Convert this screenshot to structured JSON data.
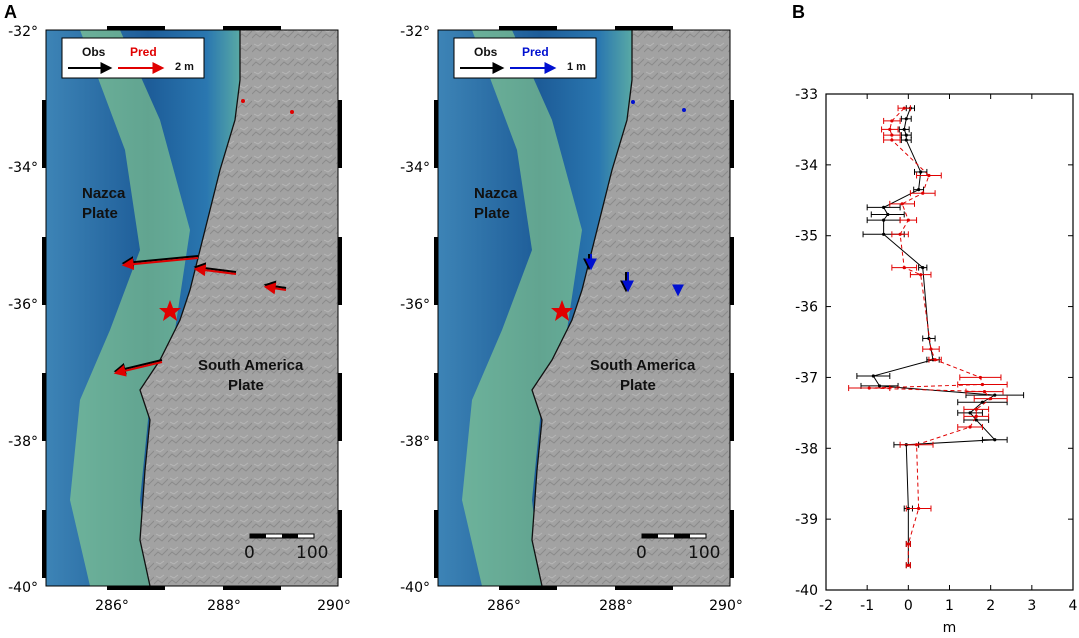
{
  "panel_a_label": "A",
  "panel_b_label": "B",
  "maps": [
    {
      "legend": {
        "obs": "Obs",
        "pred": "Pred",
        "scale": "2 m",
        "pred_color": "#e00000"
      },
      "plate1": [
        "Nazca",
        "Plate"
      ],
      "plate2": [
        "South America",
        "Plate"
      ],
      "scalebar": [
        "0",
        "100"
      ],
      "lat_ticks": [
        "-32°",
        "-34°",
        "-36°",
        "-38°",
        "-40°"
      ],
      "lon_ticks": [
        "286°",
        "288°",
        "290°"
      ]
    },
    {
      "legend": {
        "obs": "Obs",
        "pred": "Pred",
        "scale": "1 m",
        "pred_color": "#0010d0"
      },
      "plate1": [
        "Nazca",
        "Plate"
      ],
      "plate2": [
        "South America",
        "Plate"
      ],
      "scalebar": [
        "0",
        "100"
      ],
      "lat_ticks": [
        "-32°",
        "-34°",
        "-36°",
        "-38°",
        "-40°"
      ],
      "lon_ticks": [
        "286°",
        "288°",
        "290°"
      ]
    }
  ],
  "colors": {
    "obs": "#000000",
    "pred_horizontal": "#e00000",
    "pred_vertical": "#0010d0",
    "ocean_deep": "#1b5f9a",
    "ocean_mid": "#5aa8c8",
    "ocean_shallow": "#8fe39a",
    "land": "#9a9a9a"
  },
  "chart_data": {
    "type": "line",
    "xlabel": "m",
    "xlim": [
      -2,
      4
    ],
    "ylim": [
      -40,
      -33
    ],
    "xticks": [
      "-2",
      "-1",
      "0",
      "1",
      "2",
      "3",
      "4"
    ],
    "yticks": [
      "-33",
      "-34",
      "-35",
      "-36",
      "-37",
      "-38",
      "-39",
      "-40"
    ],
    "series": [
      {
        "color": "#000000",
        "style": "solid",
        "points": [
          [
            0.05,
            -33.2
          ],
          [
            -0.05,
            -33.35
          ],
          [
            -0.1,
            -33.5
          ],
          [
            -0.05,
            -33.58
          ],
          [
            -0.05,
            -33.65
          ],
          [
            0.3,
            -34.1
          ],
          [
            0.25,
            -34.35
          ],
          [
            -0.6,
            -34.6
          ],
          [
            -0.5,
            -34.7
          ],
          [
            -0.6,
            -34.78
          ],
          [
            -0.6,
            -34.98
          ],
          [
            0.35,
            -35.45
          ],
          [
            0.5,
            -36.45
          ],
          [
            0.6,
            -36.75
          ],
          [
            -0.85,
            -36.98
          ],
          [
            -0.7,
            -37.12
          ],
          [
            2.1,
            -37.25
          ],
          [
            1.8,
            -37.35
          ],
          [
            1.5,
            -37.5
          ],
          [
            1.65,
            -37.6
          ],
          [
            2.1,
            -37.88
          ],
          [
            -0.05,
            -37.95
          ],
          [
            0.0,
            -38.85
          ],
          [
            0.0,
            -39.35
          ],
          [
            0.0,
            -39.65
          ]
        ],
        "errors": [
          0.1,
          0.12,
          0.12,
          0.12,
          0.12,
          0.15,
          0.12,
          0.4,
          0.4,
          0.4,
          0.5,
          0.1,
          0.15,
          0.15,
          0.4,
          0.45,
          0.7,
          0.6,
          0.3,
          0.3,
          0.3,
          0.3,
          0.1,
          0.05,
          0.05
        ]
      },
      {
        "color": "#e00000",
        "style": "dashed",
        "points": [
          [
            -0.1,
            -33.2
          ],
          [
            -0.4,
            -33.38
          ],
          [
            -0.45,
            -33.5
          ],
          [
            -0.4,
            -33.58
          ],
          [
            -0.4,
            -33.65
          ],
          [
            0.5,
            -34.15
          ],
          [
            0.35,
            -34.4
          ],
          [
            -0.15,
            -34.55
          ],
          [
            0.0,
            -34.78
          ],
          [
            -0.2,
            -34.98
          ],
          [
            -0.1,
            -35.45
          ],
          [
            0.3,
            -35.55
          ],
          [
            0.55,
            -36.6
          ],
          [
            0.65,
            -36.75
          ],
          [
            1.75,
            -37.0
          ],
          [
            1.8,
            -37.1
          ],
          [
            -0.95,
            -37.15
          ],
          [
            1.85,
            -37.2
          ],
          [
            2.0,
            -37.3
          ],
          [
            1.65,
            -37.45
          ],
          [
            1.65,
            -37.55
          ],
          [
            1.5,
            -37.7
          ],
          [
            0.2,
            -37.95
          ],
          [
            0.25,
            -38.85
          ],
          [
            0.0,
            -39.35
          ],
          [
            0.0,
            -39.65
          ]
        ],
        "errors": [
          0.15,
          0.2,
          0.2,
          0.2,
          0.2,
          0.3,
          0.3,
          0.3,
          0.2,
          0.2,
          0.3,
          0.25,
          0.2,
          0.15,
          0.5,
          0.6,
          0.5,
          0.45,
          0.4,
          0.3,
          0.3,
          0.3,
          0.4,
          0.3,
          0.05,
          0.05
        ]
      }
    ]
  }
}
